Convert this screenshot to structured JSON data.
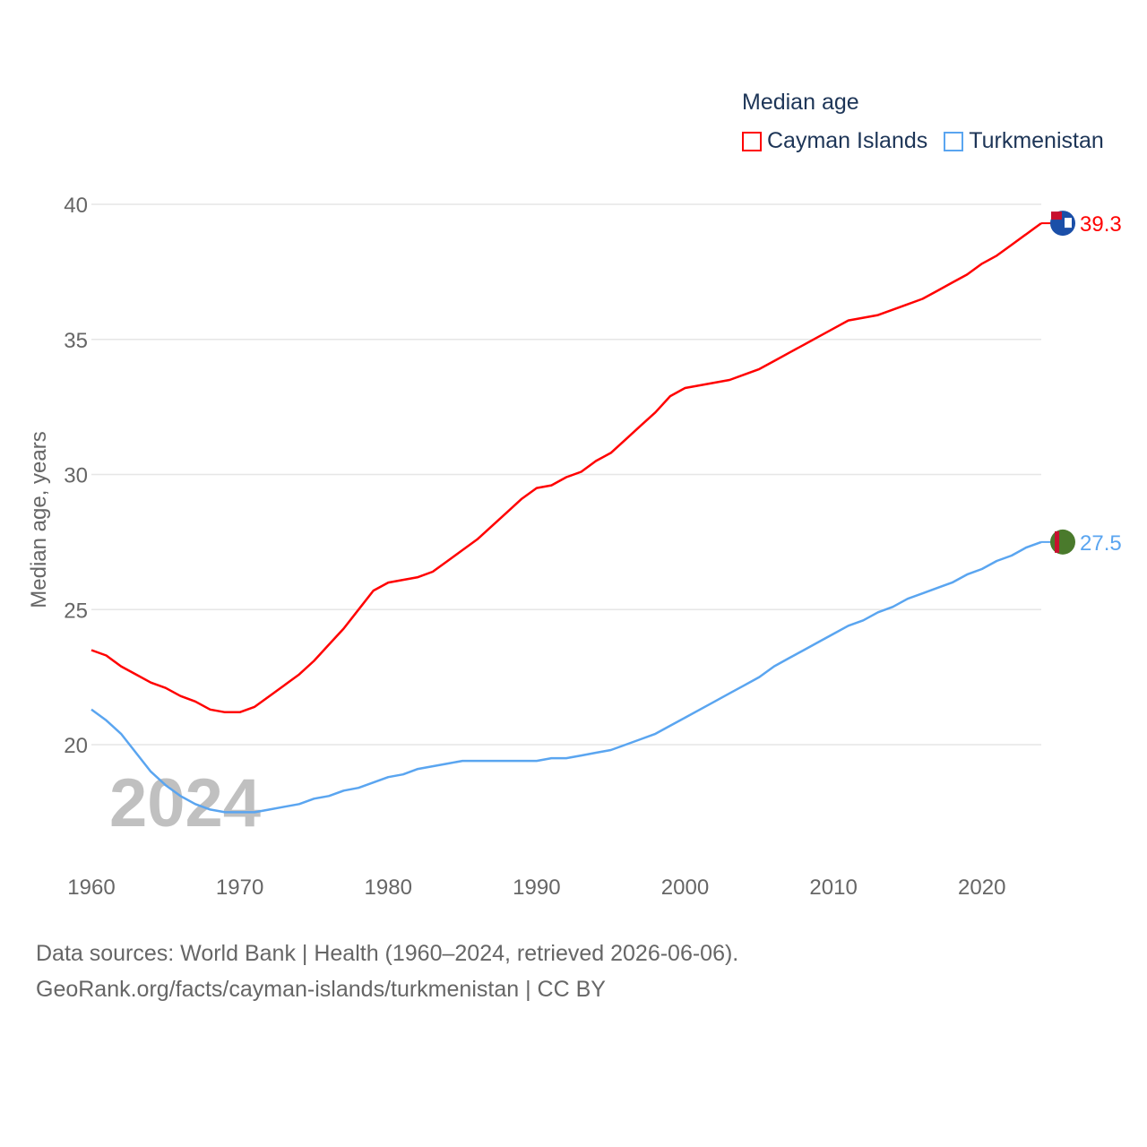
{
  "chart_data": {
    "type": "line",
    "title": "Median age",
    "xlabel": "",
    "ylabel": "Median age, years",
    "xlim": [
      1960,
      2024
    ],
    "ylim": [
      16,
      40
    ],
    "grid": true,
    "legend_position": "top-right",
    "x_ticks": [
      "1960",
      "1970",
      "1980",
      "1990",
      "2000",
      "2010",
      "2020"
    ],
    "y_ticks": [
      "20",
      "25",
      "30",
      "35",
      "40"
    ],
    "year_watermark": "2024",
    "x": [
      1960,
      1961,
      1962,
      1963,
      1964,
      1965,
      1966,
      1967,
      1968,
      1969,
      1970,
      1971,
      1972,
      1973,
      1974,
      1975,
      1976,
      1977,
      1978,
      1979,
      1980,
      1981,
      1982,
      1983,
      1984,
      1985,
      1986,
      1987,
      1988,
      1989,
      1990,
      1991,
      1992,
      1993,
      1994,
      1995,
      1996,
      1997,
      1998,
      1999,
      2000,
      2001,
      2002,
      2003,
      2004,
      2005,
      2006,
      2007,
      2008,
      2009,
      2010,
      2011,
      2012,
      2013,
      2014,
      2015,
      2016,
      2017,
      2018,
      2019,
      2020,
      2021,
      2022,
      2023,
      2024
    ],
    "series": [
      {
        "name": "Cayman Islands",
        "color": "#ff0000",
        "end_label": "39.3",
        "values": [
          23.5,
          23.3,
          22.9,
          22.6,
          22.3,
          22.1,
          21.8,
          21.6,
          21.3,
          21.2,
          21.2,
          21.4,
          21.8,
          22.2,
          22.6,
          23.1,
          23.7,
          24.3,
          25.0,
          25.7,
          26.0,
          26.1,
          26.2,
          26.4,
          26.8,
          27.2,
          27.6,
          28.1,
          28.6,
          29.1,
          29.5,
          29.6,
          29.9,
          30.1,
          30.5,
          30.8,
          31.3,
          31.8,
          32.3,
          32.9,
          33.2,
          33.3,
          33.4,
          33.5,
          33.7,
          33.9,
          34.2,
          34.5,
          34.8,
          35.1,
          35.4,
          35.7,
          35.8,
          35.9,
          36.1,
          36.3,
          36.5,
          36.8,
          37.1,
          37.4,
          37.8,
          38.1,
          38.5,
          38.9,
          39.3
        ]
      },
      {
        "name": "Turkmenistan",
        "color": "#5aa5f0",
        "end_label": "27.5",
        "values": [
          21.3,
          20.9,
          20.4,
          19.7,
          19.0,
          18.5,
          18.1,
          17.8,
          17.6,
          17.5,
          17.5,
          17.5,
          17.6,
          17.7,
          17.8,
          18.0,
          18.1,
          18.3,
          18.4,
          18.6,
          18.8,
          18.9,
          19.1,
          19.2,
          19.3,
          19.4,
          19.4,
          19.4,
          19.4,
          19.4,
          19.4,
          19.5,
          19.5,
          19.6,
          19.7,
          19.8,
          20.0,
          20.2,
          20.4,
          20.7,
          21.0,
          21.3,
          21.6,
          21.9,
          22.2,
          22.5,
          22.9,
          23.2,
          23.5,
          23.8,
          24.1,
          24.4,
          24.6,
          24.9,
          25.1,
          25.4,
          25.6,
          25.8,
          26.0,
          26.3,
          26.5,
          26.8,
          27.0,
          27.3,
          27.5
        ]
      }
    ]
  },
  "footer": {
    "line1": "Data sources: World Bank | Health (1960–2024, retrieved 2026-06-06).",
    "line2": "GeoRank.org/facts/cayman-islands/turkmenistan | CC BY"
  }
}
